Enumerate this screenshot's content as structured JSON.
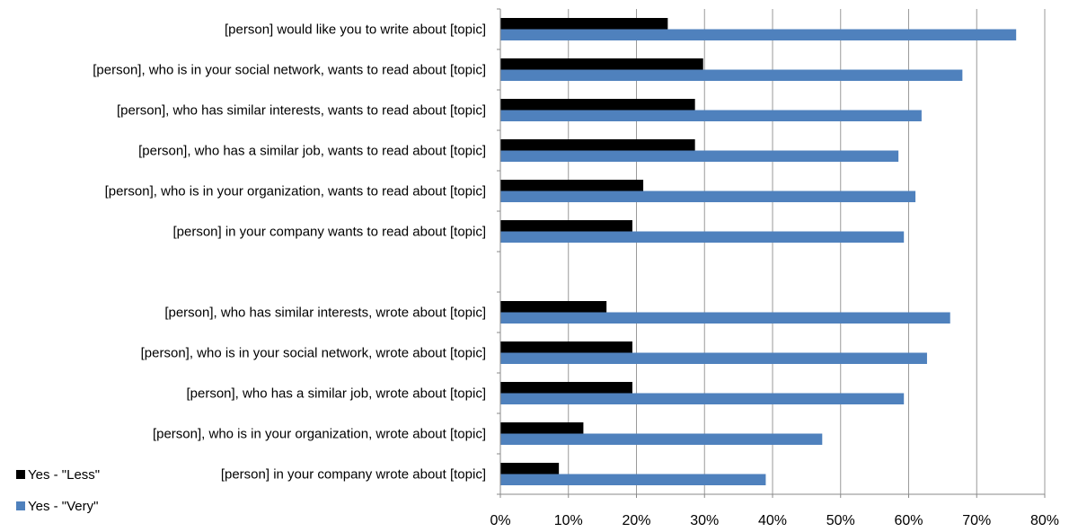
{
  "chart_data": {
    "type": "bar",
    "orientation": "horizontal",
    "categories": [
      "[person] would like you to write about [topic]",
      "[person], who is in your social network, wants to read about [topic]",
      "[person], who has similar interests, wants to read about [topic]",
      "[person], who has a similar job, wants to read about [topic]",
      "[person], who is in your organization, wants to read about [topic]",
      "[person] in your company wants to read about [topic]",
      "",
      "[person], who has similar interests, wrote about [topic]",
      "[person], who is in your social network, wrote about [topic]",
      "[person], who has a similar job, wrote about [topic]",
      "[person], who is in your organization, wrote about [topic]",
      "[person] in your company wrote about [topic]"
    ],
    "series": [
      {
        "name": "Yes - \"Less\"",
        "color": "#000000",
        "values": [
          24.6,
          29.8,
          28.6,
          28.6,
          21.0,
          19.4,
          null,
          15.6,
          19.4,
          19.4,
          12.2,
          8.6
        ]
      },
      {
        "name": "Yes - \"Very\"",
        "color": "#4f81bd",
        "values": [
          75.8,
          67.9,
          61.9,
          58.5,
          61.0,
          59.3,
          null,
          66.1,
          62.7,
          59.3,
          47.3,
          39.0
        ]
      }
    ],
    "x_ticks": [
      "0%",
      "10%",
      "20%",
      "30%",
      "40%",
      "50%",
      "60%",
      "70%",
      "80%"
    ],
    "xlim": [
      0,
      80
    ],
    "grid": true,
    "legend_position": "bottom-left"
  }
}
